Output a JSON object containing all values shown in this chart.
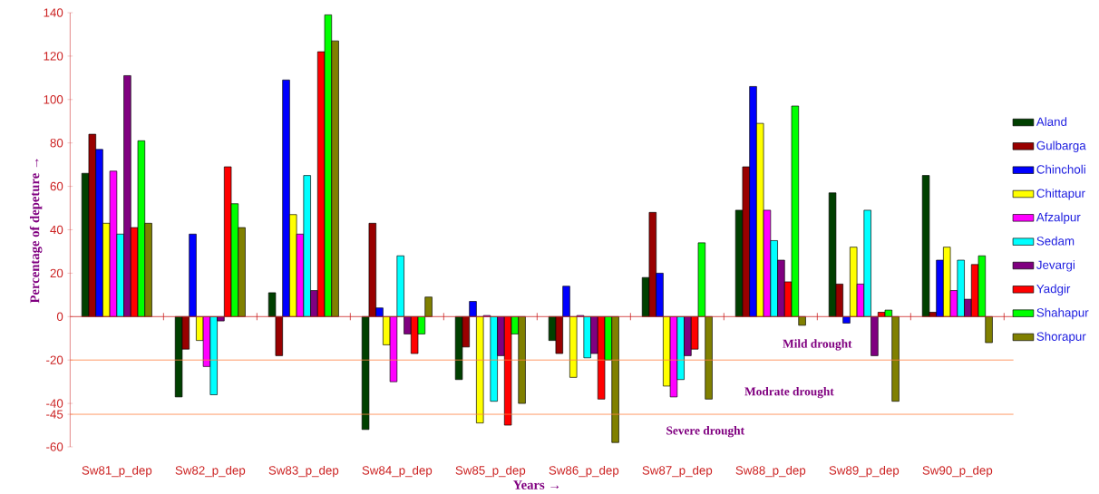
{
  "chart_data": {
    "type": "bar",
    "xlabel": "Years →",
    "ylabel": "Percentage of depeture →",
    "categories": [
      "Sw81_p_dep",
      "Sw82_p_dep",
      "Sw83_p_dep",
      "Sw84_p_dep",
      "Sw85_p_dep",
      "Sw86_p_dep",
      "Sw87_p_dep",
      "Sw88_p_dep",
      "Sw89_p_dep",
      "Sw90_p_dep"
    ],
    "series": [
      {
        "name": "Aland",
        "color": "#004000",
        "values": [
          66,
          -37,
          11,
          -52,
          -29,
          -11,
          18,
          49,
          57,
          65
        ]
      },
      {
        "name": "Gulbarga",
        "color": "#990000",
        "values": [
          84,
          -15,
          -18,
          43,
          -14,
          -17,
          48,
          69,
          15,
          2
        ]
      },
      {
        "name": "Chincholi",
        "color": "#0000ff",
        "values": [
          77,
          38,
          109,
          4,
          7,
          14,
          20,
          106,
          -3,
          26
        ]
      },
      {
        "name": "Chittapur",
        "color": "#ffff00",
        "values": [
          43,
          -11,
          47,
          -13,
          -49,
          -28,
          -32,
          89,
          32,
          32
        ]
      },
      {
        "name": "Afzalpur",
        "color": "#ff00ff",
        "values": [
          67,
          -23,
          38,
          -30,
          0.5,
          0.5,
          -37,
          49,
          15,
          12
        ]
      },
      {
        "name": "Sedam",
        "color": "#00ffff",
        "values": [
          38,
          -36,
          65,
          28,
          -39,
          -19,
          -29,
          35,
          49,
          26
        ]
      },
      {
        "name": "Jevargi",
        "color": "#800080",
        "values": [
          111,
          -2,
          12,
          -8,
          -18,
          -17,
          -18,
          26,
          -18,
          8
        ]
      },
      {
        "name": "Yadgir",
        "color": "#ff0000",
        "values": [
          41,
          69,
          122,
          -17,
          -50,
          -38,
          -15,
          16,
          2,
          24
        ]
      },
      {
        "name": "Shahapur",
        "color": "#00ff00",
        "values": [
          81,
          52,
          139,
          -8,
          -8,
          -20,
          34,
          97,
          3,
          28
        ]
      },
      {
        "name": "Shorapur",
        "color": "#808000",
        "values": [
          43,
          41,
          127,
          9,
          -40,
          -58,
          -38,
          -4,
          -39,
          -12
        ]
      }
    ],
    "ylim": [
      -60,
      140
    ],
    "yticks": [
      -60,
      -45,
      -40,
      -20,
      0,
      20,
      40,
      60,
      80,
      100,
      120,
      140
    ],
    "ref_lines": [
      {
        "axis": "y",
        "value": 0,
        "color": "#cc2222"
      },
      {
        "axis": "y",
        "value": -20,
        "color": "#ff8040"
      },
      {
        "axis": "y",
        "value": -45,
        "color": "#ff8040"
      }
    ],
    "annotations": [
      "Mild drought",
      "Modrate drought",
      "Severe drought"
    ],
    "legend": "right"
  }
}
